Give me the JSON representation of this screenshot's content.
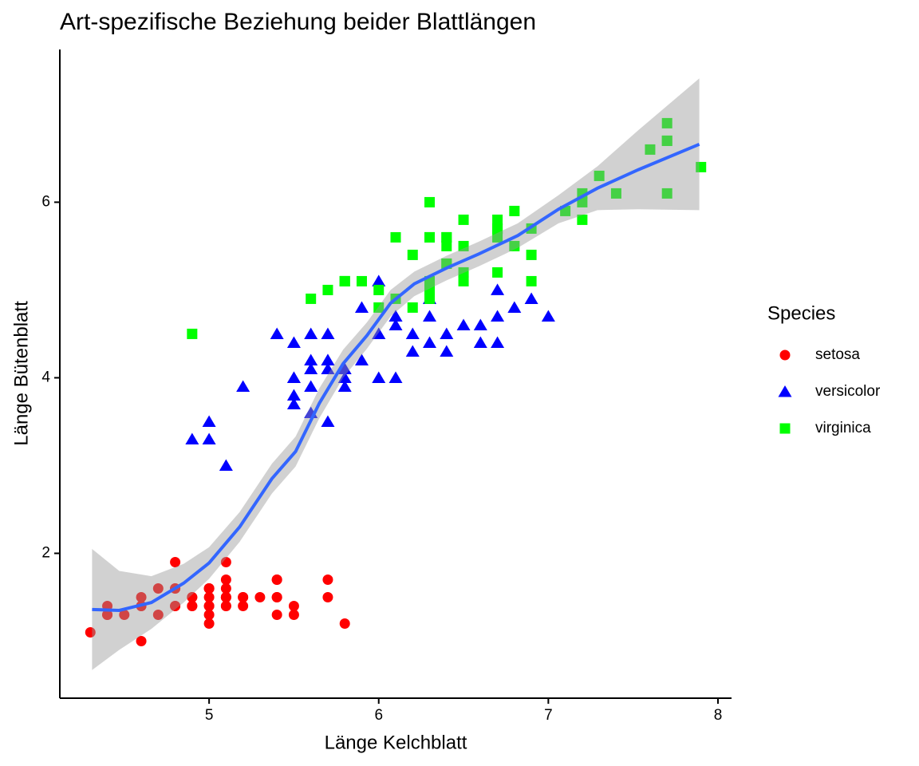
{
  "chart_data": {
    "type": "scatter",
    "title": "Art-spezifische Beziehung beider Blattlängen",
    "x_label": "Länge Kelchblatt",
    "y_label": "Länge Bütenblatt",
    "legend_title": "Species",
    "legend_position": "right",
    "xlim": [
      4.12,
      8.08
    ],
    "ylim": [
      0.35,
      7.74
    ],
    "xticks": [
      5,
      6,
      7,
      8
    ],
    "yticks": [
      2,
      4,
      6
    ],
    "series": [
      {
        "name": "setosa",
        "color": "#ff0000",
        "shape": "circle",
        "x": [
          5.1,
          4.9,
          4.7,
          4.6,
          5.0,
          5.4,
          4.6,
          5.0,
          4.4,
          4.9,
          5.4,
          4.8,
          4.8,
          4.3,
          5.8,
          5.7,
          5.4,
          5.1,
          5.7,
          5.1,
          5.4,
          5.1,
          4.6,
          5.1,
          4.8,
          5.0,
          5.0,
          5.2,
          5.2,
          4.7,
          4.8,
          5.4,
          5.2,
          5.5,
          4.9,
          5.0,
          5.5,
          4.9,
          4.4,
          5.1,
          5.0,
          4.5,
          4.4,
          5.0,
          5.1,
          4.8,
          5.1,
          4.6,
          5.3,
          5.0
        ],
        "values": [
          1.4,
          1.4,
          1.3,
          1.5,
          1.4,
          1.7,
          1.4,
          1.5,
          1.4,
          1.5,
          1.5,
          1.6,
          1.4,
          1.1,
          1.2,
          1.5,
          1.3,
          1.4,
          1.7,
          1.5,
          1.7,
          1.5,
          1.0,
          1.7,
          1.9,
          1.6,
          1.6,
          1.5,
          1.4,
          1.6,
          1.6,
          1.5,
          1.5,
          1.4,
          1.5,
          1.2,
          1.3,
          1.4,
          1.3,
          1.5,
          1.3,
          1.3,
          1.3,
          1.6,
          1.9,
          1.4,
          1.6,
          1.4,
          1.5,
          1.4
        ]
      },
      {
        "name": "versicolor",
        "color": "#0000ff",
        "shape": "triangle",
        "x": [
          7.0,
          6.4,
          6.9,
          5.5,
          6.5,
          5.7,
          6.3,
          4.9,
          6.6,
          5.2,
          5.0,
          5.9,
          6.0,
          6.1,
          5.6,
          6.7,
          5.6,
          5.8,
          6.2,
          5.6,
          5.9,
          6.1,
          6.3,
          6.1,
          6.4,
          6.6,
          6.8,
          6.7,
          6.0,
          5.7,
          5.5,
          5.5,
          5.8,
          6.0,
          5.4,
          6.0,
          6.7,
          6.3,
          5.6,
          5.5,
          5.5,
          6.1,
          5.8,
          5.0,
          5.6,
          5.7,
          5.7,
          6.2,
          5.1,
          5.7
        ],
        "values": [
          4.7,
          4.5,
          4.9,
          4.0,
          4.6,
          4.5,
          4.7,
          3.3,
          4.6,
          3.9,
          3.5,
          4.2,
          4.0,
          4.7,
          3.6,
          4.4,
          4.5,
          4.1,
          4.5,
          3.9,
          4.8,
          4.0,
          4.9,
          4.7,
          4.3,
          4.4,
          4.8,
          5.0,
          4.5,
          3.5,
          3.8,
          3.7,
          3.9,
          5.1,
          4.5,
          4.5,
          4.7,
          4.4,
          4.1,
          4.0,
          4.4,
          4.6,
          4.0,
          3.3,
          4.2,
          4.2,
          4.2,
          4.3,
          3.0,
          4.1
        ]
      },
      {
        "name": "virginica",
        "color": "#00ff00",
        "shape": "square",
        "x": [
          6.3,
          5.8,
          7.1,
          6.3,
          6.5,
          7.6,
          4.9,
          7.3,
          6.7,
          7.2,
          6.5,
          6.4,
          6.8,
          5.7,
          5.8,
          6.4,
          6.5,
          7.7,
          7.7,
          6.0,
          6.9,
          5.6,
          7.7,
          6.3,
          6.7,
          7.2,
          6.2,
          6.1,
          6.4,
          7.2,
          7.4,
          7.9,
          6.4,
          6.3,
          6.1,
          7.7,
          6.3,
          6.4,
          6.0,
          6.9,
          6.7,
          6.9,
          5.8,
          6.8,
          6.7,
          6.7,
          6.3,
          6.5,
          6.2,
          5.9
        ],
        "values": [
          6.0,
          5.1,
          5.9,
          5.6,
          5.8,
          6.6,
          4.5,
          6.3,
          5.8,
          6.1,
          5.1,
          5.3,
          5.5,
          5.0,
          5.1,
          5.3,
          5.5,
          6.7,
          6.9,
          5.0,
          5.7,
          4.9,
          6.7,
          4.9,
          5.7,
          6.0,
          4.8,
          4.9,
          5.6,
          5.8,
          6.1,
          6.4,
          5.6,
          5.1,
          5.6,
          6.1,
          5.6,
          5.5,
          4.8,
          5.4,
          5.6,
          5.1,
          5.1,
          5.9,
          5.7,
          5.2,
          5.0,
          5.2,
          5.4,
          5.1
        ]
      }
    ],
    "smooth": {
      "color": "#3366ff",
      "band_color": "#999999",
      "x": [
        4.31,
        4.47,
        4.66,
        4.85,
        5.0,
        5.18,
        5.37,
        5.51,
        5.65,
        5.79,
        5.93,
        6.07,
        6.21,
        6.4,
        6.59,
        6.82,
        7.06,
        7.29,
        7.53,
        7.89
      ],
      "y": [
        1.36,
        1.35,
        1.44,
        1.66,
        1.89,
        2.3,
        2.85,
        3.16,
        3.71,
        4.16,
        4.48,
        4.85,
        5.07,
        5.25,
        5.41,
        5.62,
        5.92,
        6.16,
        6.37,
        6.66
      ],
      "ymin": [
        0.67,
        0.9,
        1.14,
        1.44,
        1.71,
        2.13,
        2.68,
        2.99,
        3.54,
        4.0,
        4.33,
        4.7,
        4.93,
        5.11,
        5.27,
        5.48,
        5.76,
        5.91,
        5.92,
        5.91
      ],
      "ymax": [
        2.05,
        1.8,
        1.74,
        1.88,
        2.07,
        2.47,
        3.02,
        3.33,
        3.88,
        4.32,
        4.63,
        5.0,
        5.21,
        5.39,
        5.55,
        5.76,
        6.08,
        6.41,
        6.82,
        7.41
      ]
    }
  }
}
